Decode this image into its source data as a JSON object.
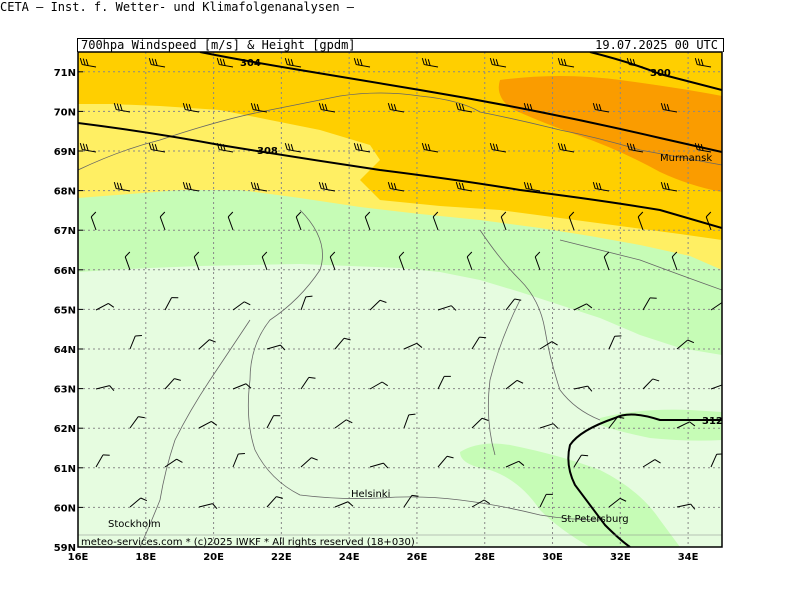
{
  "header": {
    "title": "CETA – Inst. f. Wetter- und Klimafolgenanalysen –",
    "subtitle": "700hpa_Windspeed [m/s] & Height [gpdm]",
    "timestamp": "19.07.2025 00 UTC"
  },
  "footer": {
    "credit": "meteo-services.com * (c)2025 IWKF * All rights reserved (18+030)"
  },
  "map": {
    "lat_labels": [
      "71N",
      "70N",
      "69N",
      "68N",
      "67N",
      "66N",
      "65N",
      "64N",
      "63N",
      "62N",
      "61N",
      "60N",
      "59N"
    ],
    "lon_labels": [
      "16E",
      "18E",
      "20E",
      "22E",
      "24E",
      "26E",
      "28E",
      "30E",
      "32E",
      "34E"
    ],
    "contour_labels": [
      "304",
      "300",
      "308",
      "312"
    ],
    "places": [
      "Murmansk",
      "Helsinki",
      "Stockholm",
      "St.Petersburg"
    ],
    "colors": {
      "band_orange": "#fa9c00",
      "band_dark_yellow": "#ffcf00",
      "band_yellow": "#ffef63",
      "band_light_green": "#c6fcb6",
      "band_pale_green": "#e6fce0"
    }
  }
}
